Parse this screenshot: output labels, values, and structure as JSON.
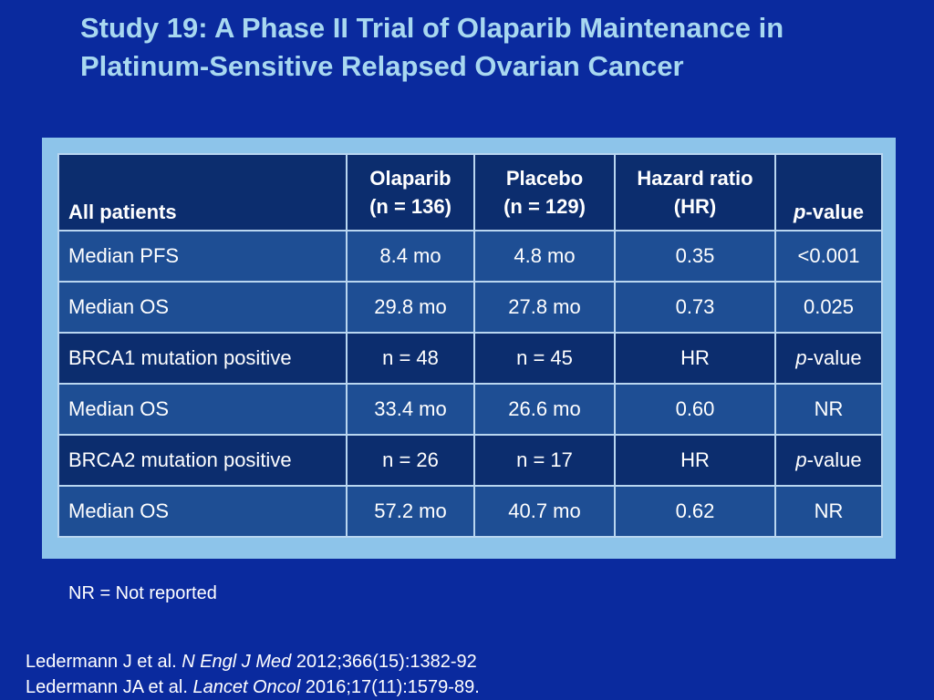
{
  "title": "Study 19: A Phase II Trial of Olaparib Maintenance in Platinum-Sensitive Relapsed Ovarian Cancer",
  "table": {
    "header": {
      "row_label": "All patients",
      "col1_line1": "Olaparib",
      "col1_line2": "(n = 136)",
      "col2_line1": "Placebo",
      "col2_line2": "(n = 129)",
      "col3_line1": "Hazard ratio",
      "col3_line2": "(HR)",
      "col4_italic": "p",
      "col4_rest": "-value"
    },
    "rows": [
      {
        "label": "Median PFS",
        "c1": "8.4 mo",
        "c2": "4.8 mo",
        "c3": "0.35",
        "c4": "<0.001"
      },
      {
        "label": "Median OS",
        "c1": "29.8 mo",
        "c2": "27.8 mo",
        "c3": "0.73",
        "c4": "0.025"
      },
      {
        "label": "BRCA1 mutation positive",
        "c1": "n = 48",
        "c2": "n = 45",
        "c3": "HR",
        "c4_italic": "p",
        "c4_rest": "-value"
      },
      {
        "label": "Median OS",
        "c1": "33.4 mo",
        "c2": "26.6 mo",
        "c3": "0.60",
        "c4": "NR"
      },
      {
        "label": "BRCA2 mutation positive",
        "c1": "n = 26",
        "c2": "n = 17",
        "c3": "HR",
        "c4_italic": "p",
        "c4_rest": "-value"
      },
      {
        "label": "Median OS",
        "c1": "57.2 mo",
        "c2": "40.7 mo",
        "c3": "0.62",
        "c4": "NR"
      }
    ]
  },
  "footnote": "NR = Not reported",
  "references": [
    {
      "authors": "Ledermann J et al. ",
      "journal": "N Engl J Med",
      "citation": " 2012;366(15):1382-92"
    },
    {
      "authors": "Ledermann JA et al. ",
      "journal": "Lancet Oncol",
      "citation": " 2016;17(11):1579-89."
    }
  ]
}
